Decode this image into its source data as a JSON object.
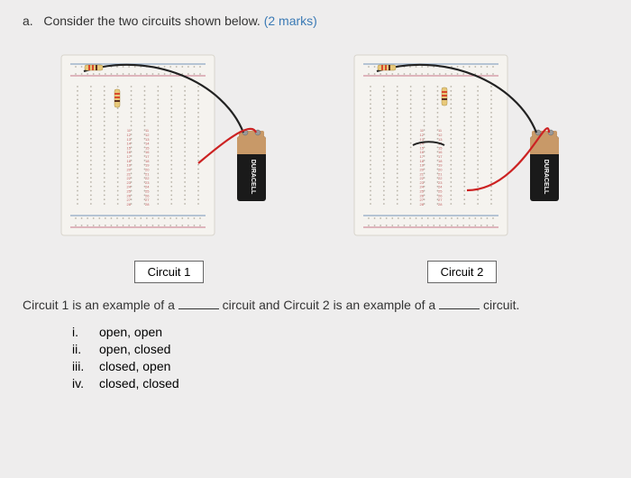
{
  "question": {
    "prefix": "a.",
    "text": "Consider the two circuits shown below.",
    "marks": "(2 marks)"
  },
  "circuits": {
    "left_label": "Circuit 1",
    "right_label": "Circuit 2"
  },
  "sentence": {
    "part1": "Circuit 1 is an example of a",
    "part2": "circuit and Circuit 2 is an example of a",
    "part3": "circuit."
  },
  "options": [
    {
      "num": "i.",
      "text": "open, open"
    },
    {
      "num": "ii.",
      "text": "open, closed"
    },
    {
      "num": "iii.",
      "text": "closed, open"
    },
    {
      "num": "iv.",
      "text": "closed, closed"
    }
  ],
  "colors": {
    "breadboard_bg": "#f5f3ef",
    "breadboard_border": "#d8d4cc",
    "hole": "#b8b3a8",
    "rail_red": "#d0909e",
    "rail_blue": "#8fa8c4",
    "battery_body": "#1a1a1a",
    "battery_top": "#c89968",
    "battery_text": "#ffffff",
    "wire_red": "#cc2222",
    "wire_black": "#222222",
    "resistor_body": "#e8c97a",
    "resistor_band1": "#d84a2c",
    "resistor_band2": "#d84a2c"
  }
}
